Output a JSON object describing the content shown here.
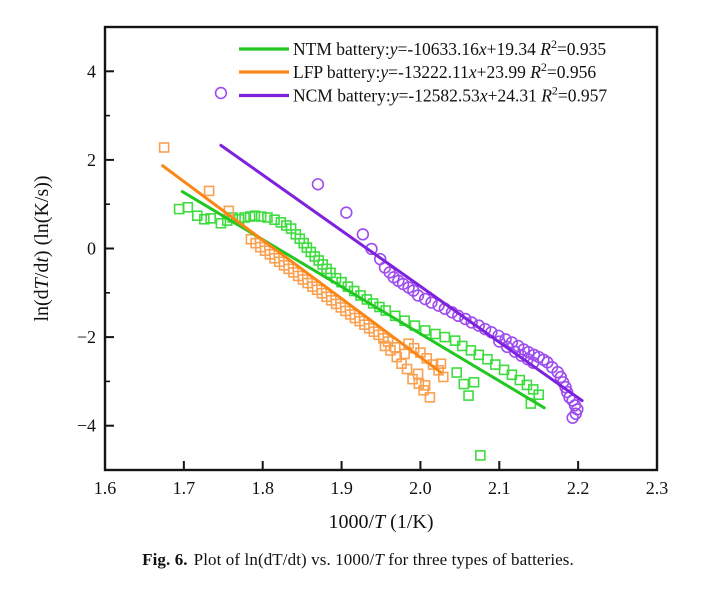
{
  "figure": {
    "caption": {
      "label": "Fig. 6.",
      "parts": [
        {
          "t": "Plot of ln(dT/dt) vs. 1000/"
        },
        {
          "t": "T",
          "i": true
        },
        {
          "t": " for three types of batteries."
        }
      ]
    }
  },
  "chart_data": {
    "type": "scatter",
    "title": "",
    "legend_position": "upper-right-inside",
    "grid": false,
    "x_axis": {
      "label_parts": [
        {
          "t": "1000/"
        },
        {
          "t": "T",
          "i": true
        },
        {
          "t": " (1/K)"
        }
      ],
      "xlim": [
        1.6,
        2.3
      ],
      "major_ticks": [
        1.6,
        1.7,
        1.8,
        1.9,
        2.0,
        2.1,
        2.2,
        2.3
      ],
      "tick_labels": [
        "1.6",
        "1.7",
        "1.8",
        "1.9",
        "2.0",
        "2.1",
        "2.2",
        "2.3"
      ]
    },
    "y_axis": {
      "label_parts": [
        {
          "t": "ln(d"
        },
        {
          "t": "T",
          "i": true
        },
        {
          "t": "/d"
        },
        {
          "t": "t",
          "i": true
        },
        {
          "t": ") (ln(K/s))"
        }
      ],
      "ylim": [
        -5,
        5
      ],
      "major_ticks": [
        -4,
        -2,
        0,
        2,
        4
      ],
      "tick_labels": [
        "−4",
        "−2",
        "0",
        "2",
        "4"
      ],
      "minor_ticks": [
        -3,
        -1,
        1,
        3
      ]
    },
    "series": [
      {
        "id": "ntm",
        "name": "NTM battery",
        "marker": "square",
        "marker_color": "#3edc3e",
        "line_color": "#22c822",
        "fit": {
          "slope_per_x": -10.63316,
          "intercept": 19.34,
          "x1": 1.698,
          "x2": 2.157,
          "equation": "y=-10633.16x+19.34",
          "r2": "0.935"
        },
        "legend_parts": [
          {
            "t": "NTM battery:"
          },
          {
            "t": "y",
            "i": true
          },
          {
            "t": "=-10633.16"
          },
          {
            "t": "x",
            "i": true
          },
          {
            "t": "+19.34 "
          },
          {
            "t": "R",
            "i": true
          },
          {
            "t": "2",
            "sup": true
          },
          {
            "t": "=0.935"
          }
        ],
        "points": [
          [
            1.694,
            0.89
          ],
          [
            1.705,
            0.93
          ],
          [
            1.717,
            0.74
          ],
          [
            1.726,
            0.66
          ],
          [
            1.734,
            0.68
          ],
          [
            1.747,
            0.57
          ],
          [
            1.755,
            0.63
          ],
          [
            1.762,
            0.7
          ],
          [
            1.77,
            0.66
          ],
          [
            1.777,
            0.7
          ],
          [
            1.784,
            0.72
          ],
          [
            1.79,
            0.74
          ],
          [
            1.798,
            0.72
          ],
          [
            1.806,
            0.7
          ],
          [
            1.815,
            0.65
          ],
          [
            1.823,
            0.59
          ],
          [
            1.83,
            0.52
          ],
          [
            1.836,
            0.45
          ],
          [
            1.842,
            0.32
          ],
          [
            1.847,
            0.22
          ],
          [
            1.852,
            0.12
          ],
          [
            1.856,
            0.02
          ],
          [
            1.861,
            -0.08
          ],
          [
            1.866,
            -0.18
          ],
          [
            1.871,
            -0.27
          ],
          [
            1.876,
            -0.36
          ],
          [
            1.881,
            -0.46
          ],
          [
            1.886,
            -0.55
          ],
          [
            1.893,
            -0.67
          ],
          [
            1.9,
            -0.76
          ],
          [
            1.908,
            -0.86
          ],
          [
            1.916,
            -0.96
          ],
          [
            1.924,
            -1.06
          ],
          [
            1.932,
            -1.15
          ],
          [
            1.94,
            -1.24
          ],
          [
            1.948,
            -1.32
          ],
          [
            1.956,
            -1.4
          ],
          [
            1.968,
            -1.52
          ],
          [
            1.98,
            -1.63
          ],
          [
            1.993,
            -1.74
          ],
          [
            2.006,
            -1.85
          ],
          [
            2.019,
            -1.93
          ],
          [
            2.031,
            -2.0
          ],
          [
            2.044,
            -2.08
          ],
          [
            2.053,
            -2.2
          ],
          [
            2.064,
            -2.3
          ],
          [
            2.074,
            -2.4
          ],
          [
            2.085,
            -2.5
          ],
          [
            2.095,
            -2.62
          ],
          [
            2.106,
            -2.74
          ],
          [
            2.116,
            -2.85
          ],
          [
            2.126,
            -2.97
          ],
          [
            2.135,
            -3.08
          ],
          [
            2.143,
            -3.18
          ],
          [
            2.15,
            -3.3
          ],
          [
            2.046,
            -2.8
          ],
          [
            2.055,
            -3.06
          ],
          [
            2.061,
            -3.32
          ],
          [
            2.068,
            -3.02
          ],
          [
            2.14,
            -3.5
          ],
          [
            2.076,
            -4.67
          ]
        ]
      },
      {
        "id": "lfp",
        "name": "LFP battery",
        "marker": "square",
        "marker_color": "#f9a150",
        "line_color": "#fa8616",
        "fit": {
          "slope_per_x": -13.22211,
          "intercept": 23.99,
          "x1": 1.673,
          "x2": 2.026,
          "equation": "y=-13222.11x+23.99",
          "r2": "0.956"
        },
        "legend_parts": [
          {
            "t": "LFP battery:"
          },
          {
            "t": "y",
            "i": true
          },
          {
            "t": "=-13222.11"
          },
          {
            "t": "x",
            "i": true
          },
          {
            "t": "+23.99 "
          },
          {
            "t": "R",
            "i": true
          },
          {
            "t": "2",
            "sup": true
          },
          {
            "t": "=0.956"
          }
        ],
        "points": [
          [
            1.675,
            2.28
          ],
          [
            1.732,
            1.3
          ],
          [
            1.757,
            0.85
          ],
          [
            1.785,
            0.21
          ],
          [
            1.791,
            0.12
          ],
          [
            1.797,
            0.03
          ],
          [
            1.803,
            -0.05
          ],
          [
            1.809,
            -0.13
          ],
          [
            1.815,
            -0.22
          ],
          [
            1.821,
            -0.3
          ],
          [
            1.827,
            -0.38
          ],
          [
            1.833,
            -0.46
          ],
          [
            1.839,
            -0.54
          ],
          [
            1.845,
            -0.62
          ],
          [
            1.851,
            -0.7
          ],
          [
            1.857,
            -0.78
          ],
          [
            1.863,
            -0.86
          ],
          [
            1.869,
            -0.93
          ],
          [
            1.875,
            -1.01
          ],
          [
            1.881,
            -1.09
          ],
          [
            1.887,
            -1.17
          ],
          [
            1.893,
            -1.25
          ],
          [
            1.899,
            -1.33
          ],
          [
            1.905,
            -1.41
          ],
          [
            1.911,
            -1.49
          ],
          [
            1.917,
            -1.57
          ],
          [
            1.923,
            -1.64
          ],
          [
            1.929,
            -1.72
          ],
          [
            1.935,
            -1.8
          ],
          [
            1.941,
            -1.88
          ],
          [
            1.947,
            -1.95
          ],
          [
            1.953,
            -2.03
          ],
          [
            1.959,
            -2.1
          ],
          [
            1.955,
            -2.2
          ],
          [
            1.962,
            -2.3
          ],
          [
            1.968,
            -2.23
          ],
          [
            1.97,
            -2.45
          ],
          [
            1.976,
            -2.6
          ],
          [
            1.98,
            -2.38
          ],
          [
            1.983,
            -2.72
          ],
          [
            1.985,
            -2.15
          ],
          [
            1.99,
            -2.95
          ],
          [
            1.992,
            -2.25
          ],
          [
            1.997,
            -2.83
          ],
          [
            1.998,
            -3.05
          ],
          [
            2.0,
            -2.35
          ],
          [
            2.004,
            -3.2
          ],
          [
            2.006,
            -3.09
          ],
          [
            2.008,
            -2.48
          ],
          [
            2.012,
            -3.36
          ],
          [
            2.016,
            -2.62
          ],
          [
            2.023,
            -2.75
          ],
          [
            2.029,
            -2.9
          ],
          [
            2.026,
            -2.6
          ]
        ]
      },
      {
        "id": "ncm",
        "name": "NCM battery",
        "marker": "circle",
        "marker_color": "#9d4cee",
        "line_color": "#7e22dd",
        "fit": {
          "slope_per_x": -12.58253,
          "intercept": 24.31,
          "x1": 1.747,
          "x2": 2.205,
          "equation": "y=-12582.53x+24.31",
          "r2": "0.957"
        },
        "legend_parts": [
          {
            "t": "NCM battery:"
          },
          {
            "t": "y",
            "i": true
          },
          {
            "t": "=-12582.53"
          },
          {
            "t": "x",
            "i": true
          },
          {
            "t": "+24.31 "
          },
          {
            "t": "R",
            "i": true
          },
          {
            "t": "2",
            "sup": true
          },
          {
            "t": "=0.957"
          }
        ],
        "points": [
          [
            1.747,
            3.51
          ],
          [
            1.87,
            1.45
          ],
          [
            1.906,
            0.81
          ],
          [
            1.927,
            0.32
          ],
          [
            1.938,
            -0.01
          ],
          [
            1.949,
            -0.24
          ],
          [
            1.955,
            -0.43
          ],
          [
            1.961,
            -0.54
          ],
          [
            1.966,
            -0.65
          ],
          [
            1.972,
            -0.73
          ],
          [
            1.978,
            -0.8
          ],
          [
            1.985,
            -0.88
          ],
          [
            1.991,
            -0.95
          ],
          [
            1.997,
            -1.06
          ],
          [
            2.006,
            -1.14
          ],
          [
            2.014,
            -1.22
          ],
          [
            2.023,
            -1.29
          ],
          [
            2.031,
            -1.36
          ],
          [
            2.04,
            -1.44
          ],
          [
            2.048,
            -1.52
          ],
          [
            2.057,
            -1.59
          ],
          [
            2.065,
            -1.67
          ],
          [
            2.074,
            -1.74
          ],
          [
            2.082,
            -1.82
          ],
          [
            2.09,
            -1.89
          ],
          [
            2.099,
            -1.97
          ],
          [
            2.1,
            -2.1
          ],
          [
            2.108,
            -2.05
          ],
          [
            2.11,
            -2.22
          ],
          [
            2.116,
            -2.12
          ],
          [
            2.12,
            -2.33
          ],
          [
            2.124,
            -2.2
          ],
          [
            2.128,
            -2.42
          ],
          [
            2.131,
            -2.28
          ],
          [
            2.136,
            -2.5
          ],
          [
            2.137,
            -2.34
          ],
          [
            2.143,
            -2.58
          ],
          [
            2.144,
            -2.4
          ],
          [
            2.15,
            -2.45
          ],
          [
            2.156,
            -2.51
          ],
          [
            2.161,
            -2.57
          ],
          [
            2.167,
            -2.68
          ],
          [
            2.174,
            -2.79
          ],
          [
            2.178,
            -2.9
          ],
          [
            2.181,
            -3.02
          ],
          [
            2.184,
            -3.13
          ],
          [
            2.186,
            -3.24
          ],
          [
            2.189,
            -3.36
          ],
          [
            2.193,
            -3.43
          ],
          [
            2.196,
            -3.54
          ],
          [
            2.199,
            -3.63
          ],
          [
            2.197,
            -3.73
          ],
          [
            2.193,
            -3.82
          ]
        ]
      }
    ]
  }
}
